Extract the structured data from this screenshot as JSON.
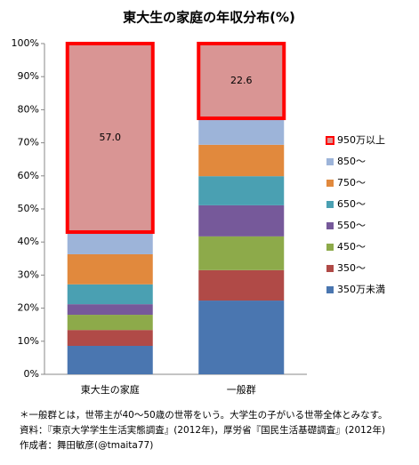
{
  "chart_data": {
    "type": "stacked_bar",
    "title": "東大生の家庭の年収分布(%)",
    "categories": [
      "東大生の家庭",
      "一般群"
    ],
    "series": [
      {
        "name": "350万未満",
        "color": "#4a76b0",
        "values": [
          8.6,
          22.3
        ]
      },
      {
        "name": "350～",
        "color": "#b04a47",
        "values": [
          4.8,
          9.2
        ]
      },
      {
        "name": "450～",
        "color": "#8daa4a",
        "values": [
          4.6,
          10.2
        ]
      },
      {
        "name": "550～",
        "color": "#76599a",
        "values": [
          3.2,
          9.4
        ]
      },
      {
        "name": "650～",
        "color": "#4aa0b2",
        "values": [
          6.0,
          8.8
        ]
      },
      {
        "name": "750～",
        "color": "#e1893d",
        "values": [
          9.1,
          9.5
        ]
      },
      {
        "name": "850～",
        "color": "#9db4d9",
        "values": [
          6.7,
          8.0
        ]
      },
      {
        "name": "950万以上",
        "color": "#d99594",
        "border_color": "#ff0000",
        "values": [
          57.0,
          22.6
        ],
        "value_labels": [
          "57.0",
          "22.6"
        ]
      }
    ],
    "ylim": [
      0,
      100
    ],
    "yticks": [
      {
        "value": 0,
        "label": "0%"
      },
      {
        "value": 10,
        "label": "10%"
      },
      {
        "value": 20,
        "label": "20%"
      },
      {
        "value": 30,
        "label": "30%"
      },
      {
        "value": 40,
        "label": "40%"
      },
      {
        "value": 50,
        "label": "50%"
      },
      {
        "value": 60,
        "label": "60%"
      },
      {
        "value": 70,
        "label": "70%"
      },
      {
        "value": 80,
        "label": "80%"
      },
      {
        "value": 90,
        "label": "90%"
      },
      {
        "value": 100,
        "label": "100%"
      }
    ],
    "legend": "right",
    "notes": [
      "＊一般群とは，世帯主が40～50歳の世帯をいう。大学生の子がいる世帯全体とみなす。",
      "資料：『東京大学学生生活実態調査』(2012年)，厚労省『国民生活基礎調査』(2012年)",
      "作成者：舞田敏彦(@tmaita77)"
    ]
  }
}
